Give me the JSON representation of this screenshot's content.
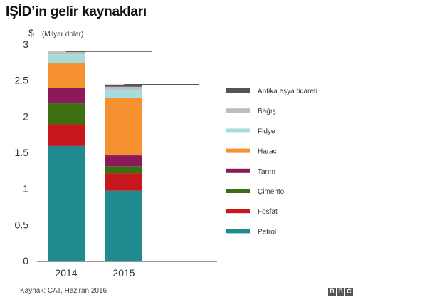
{
  "title": "IŞİD’in gelir kaynakları",
  "source": "Kaynak: CAT, Haziran 2016",
  "logo": [
    "B",
    "B",
    "C"
  ],
  "chart_data": {
    "type": "bar",
    "stacked": true,
    "ylabel": "$",
    "yunit": "(Milyar dolar)",
    "ylim": [
      0,
      3
    ],
    "yticks": [
      "0",
      "0.5",
      "1",
      "1.5",
      "2",
      "2.5",
      "3"
    ],
    "categories": [
      "2014",
      "2015"
    ],
    "totals": [
      2.9,
      2.44
    ],
    "series": [
      {
        "name": "Petrol",
        "color": "#1f8a8f",
        "values": [
          1.59,
          0.97
        ]
      },
      {
        "name": "Fosfat",
        "color": "#c8171c",
        "values": [
          0.3,
          0.24
        ]
      },
      {
        "name": "Çimento",
        "color": "#3d6e12",
        "values": [
          0.29,
          0.1
        ]
      },
      {
        "name": "Tarım",
        "color": "#8b1a5c",
        "values": [
          0.21,
          0.15
        ]
      },
      {
        "name": "Haraç",
        "color": "#f5922f",
        "values": [
          0.35,
          0.8
        ]
      },
      {
        "name": "Fidye",
        "color": "#a8dcdc",
        "values": [
          0.12,
          0.11
        ]
      },
      {
        "name": "Bağış",
        "color": "#bdbdbd",
        "values": [
          0.04,
          0.04
        ]
      },
      {
        "name": "Antika eşya ticareti",
        "color": "#555555",
        "values": [
          0.0,
          0.03
        ]
      }
    ],
    "legend_position": "right",
    "grid": false
  }
}
